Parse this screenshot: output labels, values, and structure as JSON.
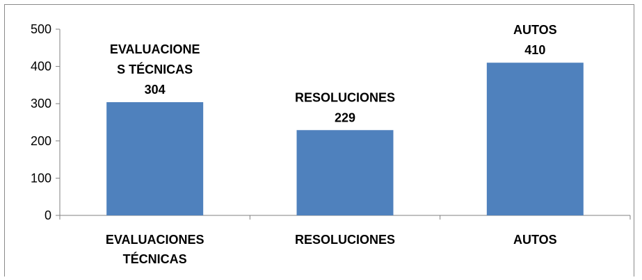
{
  "chart_data": {
    "type": "bar",
    "categories": [
      [
        "EVALUACIONES",
        "TÉCNICAS"
      ],
      [
        "RESOLUCIONES"
      ],
      [
        "AUTOS"
      ]
    ],
    "values": [
      304,
      229,
      410
    ],
    "data_labels": [
      [
        "EVALUACIONE",
        "S TÉCNICAS",
        "304"
      ],
      [
        "RESOLUCIONES",
        "229"
      ],
      [
        "AUTOS",
        "410"
      ]
    ],
    "yticks": [
      "0",
      "100",
      "200",
      "300",
      "400",
      "500"
    ],
    "ylim": [
      0,
      500
    ],
    "bar_color": "#4f81bd",
    "axis_color": "#808080",
    "grid": false,
    "legend": "none"
  }
}
